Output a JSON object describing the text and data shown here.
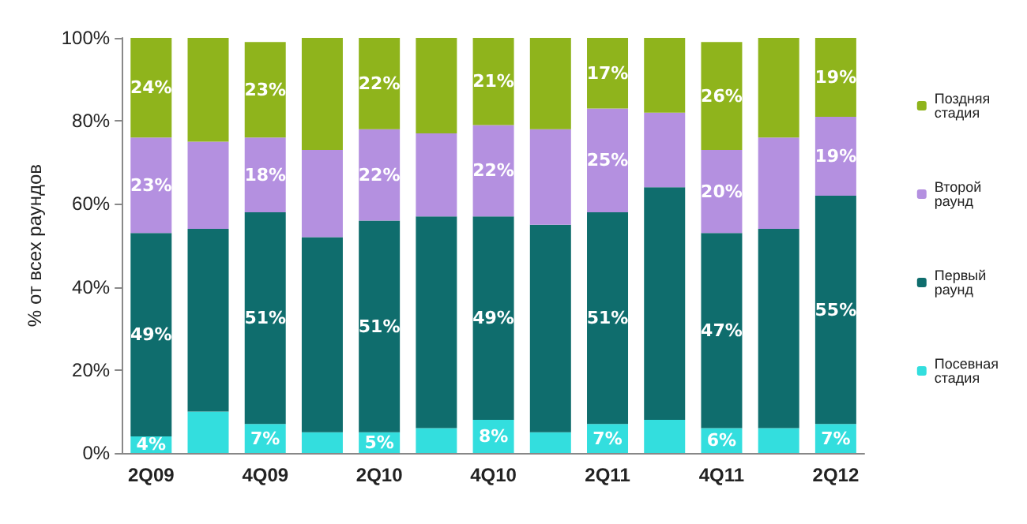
{
  "chart_data": {
    "type": "bar",
    "stacked": true,
    "ylabel": "% от всех раундов",
    "categories": [
      "2Q09",
      null,
      "4Q09",
      null,
      "2Q10",
      null,
      "4Q10",
      null,
      "2Q11",
      null,
      "4Q11",
      null,
      "2Q12"
    ],
    "series": [
      {
        "name": "Посевная стадия",
        "color": "#33dede",
        "values": [
          4,
          10,
          7,
          5,
          5,
          6,
          8,
          5,
          7,
          8,
          6,
          6,
          7
        ],
        "value_labels": [
          "4%",
          null,
          "7%",
          null,
          "5%",
          null,
          "8%",
          null,
          "7%",
          null,
          "6%",
          null,
          "7%"
        ]
      },
      {
        "name": "Первый раунд",
        "color": "#0f6d6d",
        "values": [
          49,
          44,
          51,
          47,
          51,
          51,
          49,
          50,
          51,
          56,
          47,
          48,
          55
        ],
        "value_labels": [
          "49%",
          null,
          "51%",
          null,
          "51%",
          null,
          "49%",
          null,
          "51%",
          null,
          "47%",
          null,
          "55%"
        ]
      },
      {
        "name": "Второй раунд",
        "color": "#b490e0",
        "values": [
          23,
          21,
          18,
          21,
          22,
          20,
          22,
          23,
          25,
          18,
          20,
          22,
          19
        ],
        "value_labels": [
          "23%",
          null,
          "18%",
          null,
          "22%",
          null,
          "22%",
          null,
          "25%",
          null,
          "20%",
          null,
          "19%"
        ]
      },
      {
        "name": "Поздняя стадия",
        "color": "#8fb41c",
        "values": [
          24,
          25,
          23,
          27,
          22,
          23,
          21,
          22,
          17,
          18,
          26,
          24,
          19
        ],
        "value_labels": [
          "24%",
          null,
          "23%",
          null,
          "22%",
          null,
          "21%",
          null,
          "17%",
          null,
          "26%",
          null,
          "19%"
        ]
      }
    ],
    "ylim": [
      0,
      100
    ],
    "yticks": [
      {
        "value": 0,
        "label": "0%"
      },
      {
        "value": 20,
        "label": "20%"
      },
      {
        "value": 40,
        "label": "40%"
      },
      {
        "value": 60,
        "label": "60%"
      },
      {
        "value": 80,
        "label": "80%"
      },
      {
        "value": 100,
        "label": "100%"
      }
    ],
    "grid": false,
    "legend": "right"
  }
}
